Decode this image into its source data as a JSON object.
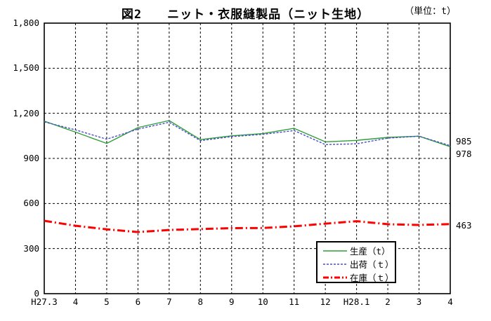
{
  "title": "図2　　ニット・衣服縫製品（ニット生地）",
  "unit_label": "（単位：t）",
  "chart_data": {
    "type": "line",
    "title": "図2　ニット・衣服縫製品（ニット生地）",
    "unit": "t",
    "x_labels": [
      "H27.3",
      "4",
      "5",
      "6",
      "7",
      "8",
      "9",
      "10",
      "11",
      "12",
      "H28.1",
      "2",
      "3",
      "4"
    ],
    "series": [
      {
        "name": "生産（t）",
        "color": "#2f9e38",
        "style": "solid",
        "values": [
          1148,
          1075,
          1000,
          1105,
          1152,
          1025,
          1050,
          1065,
          1100,
          1010,
          1020,
          1040,
          1048,
          978
        ]
      },
      {
        "name": "出荷（ｔ）",
        "color": "#4a4ace",
        "style": "dashed",
        "values": [
          1143,
          1090,
          1028,
          1095,
          1140,
          1018,
          1045,
          1060,
          1085,
          992,
          997,
          1035,
          1048,
          985
        ]
      },
      {
        "name": "在庫（ｔ）",
        "color": "#ff0000",
        "style": "dashdot",
        "values": [
          485,
          452,
          428,
          410,
          424,
          430,
          436,
          437,
          448,
          466,
          482,
          462,
          457,
          463
        ]
      }
    ],
    "ylim": [
      0,
      1800
    ],
    "y_ticks": [
      {
        "value": 0,
        "label": "0"
      },
      {
        "value": 300,
        "label": "300"
      },
      {
        "value": 600,
        "label": "600"
      },
      {
        "value": 900,
        "label": "900"
      },
      {
        "value": 1200,
        "label": "1,200"
      },
      {
        "value": 1500,
        "label": "1,500"
      },
      {
        "value": 1800,
        "label": "1,800"
      }
    ],
    "grid": true,
    "grid_color": "#000000",
    "border_color": "#000000",
    "background_color": "#ffffff",
    "legend_position": "inside-bottom-right",
    "end_labels": [
      {
        "text": "985",
        "series": "出荷"
      },
      {
        "text": "978",
        "series": "生産"
      },
      {
        "text": "463",
        "series": "在庫"
      }
    ]
  }
}
